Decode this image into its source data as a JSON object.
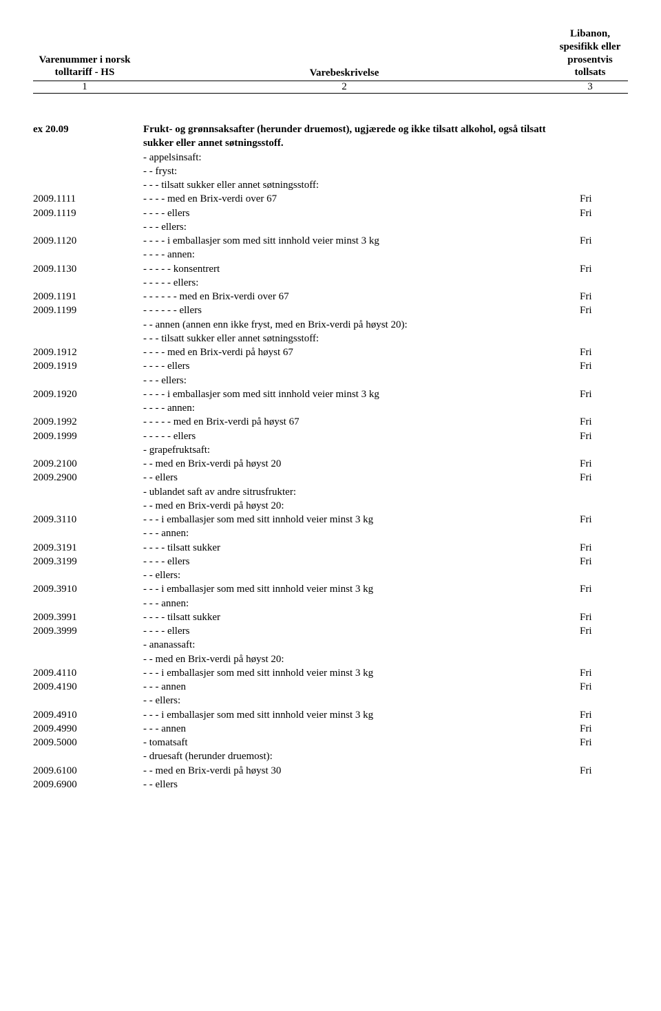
{
  "header": {
    "col1": "Varenummer\ni norsk\ntolltariff -\nHS",
    "col2": "Varebeskrivelse",
    "col3": "Libanon,\nspesifikk\neller\nprosentvis\ntollsats",
    "n1": "1",
    "n2": "2",
    "n3": "3"
  },
  "rows": [
    {
      "c1": "ex 20.09",
      "c2": "Frukt- og grønnsaksafter (herunder druemost), ugjærede og ikke tilsatt alkohol, også tilsatt sukker eller annet søtningsstoff.",
      "c3": "",
      "bold": true
    },
    {
      "c1": "",
      "c2": "- appelsinsaft:",
      "c3": ""
    },
    {
      "c1": "",
      "c2": "- - fryst:",
      "c3": ""
    },
    {
      "c1": "",
      "c2": "- - - tilsatt sukker eller annet søtningsstoff:",
      "c3": ""
    },
    {
      "c1": "2009.1111",
      "c2": "- - - - med en Brix-verdi over 67",
      "c3": "Fri"
    },
    {
      "c1": "2009.1119",
      "c2": "- - - - ellers",
      "c3": "Fri"
    },
    {
      "c1": "",
      "c2": "- - - ellers:",
      "c3": ""
    },
    {
      "c1": "2009.1120",
      "c2": "- - - - i emballasjer som med sitt innhold veier minst 3 kg",
      "c3": "Fri"
    },
    {
      "c1": "",
      "c2": "- - - - annen:",
      "c3": ""
    },
    {
      "c1": "2009.1130",
      "c2": "- - - - - konsentrert",
      "c3": "Fri"
    },
    {
      "c1": "",
      "c2": "- - - - - ellers:",
      "c3": ""
    },
    {
      "c1": "2009.1191",
      "c2": "- - - - - - med en Brix-verdi over 67",
      "c3": "Fri"
    },
    {
      "c1": "2009.1199",
      "c2": "- - - - - - ellers",
      "c3": "Fri"
    },
    {
      "c1": "",
      "c2": "- - annen (annen enn ikke fryst, med en Brix-verdi på høyst 20):",
      "c3": ""
    },
    {
      "c1": "",
      "c2": "- - - tilsatt sukker eller annet søtningsstoff:",
      "c3": ""
    },
    {
      "c1": "2009.1912",
      "c2": "- - - - med en Brix-verdi på høyst 67",
      "c3": "Fri"
    },
    {
      "c1": "2009.1919",
      "c2": "- - - - ellers",
      "c3": "Fri"
    },
    {
      "c1": "",
      "c2": "- - - ellers:",
      "c3": ""
    },
    {
      "c1": "2009.1920",
      "c2": "- - - - i emballasjer som med sitt innhold veier minst 3 kg",
      "c3": "Fri"
    },
    {
      "c1": "",
      "c2": "- - - - annen:",
      "c3": ""
    },
    {
      "c1": "2009.1992",
      "c2": "- - - - - med en Brix-verdi på høyst 67",
      "c3": "Fri"
    },
    {
      "c1": "2009.1999",
      "c2": "- - - - - ellers",
      "c3": "Fri"
    },
    {
      "c1": "",
      "c2": "- grapefruktsaft:",
      "c3": ""
    },
    {
      "c1": "2009.2100",
      "c2": "- - med en Brix-verdi på høyst 20",
      "c3": "Fri"
    },
    {
      "c1": "2009.2900",
      "c2": "- - ellers",
      "c3": "Fri"
    },
    {
      "c1": "",
      "c2": "- ublandet saft av andre sitrusfrukter:",
      "c3": ""
    },
    {
      "c1": "",
      "c2": "- - med en Brix-verdi på høyst 20:",
      "c3": ""
    },
    {
      "c1": "2009.3110",
      "c2": "- - - i emballasjer som med sitt innhold veier minst 3 kg",
      "c3": "Fri"
    },
    {
      "c1": "",
      "c2": "- - - annen:",
      "c3": ""
    },
    {
      "c1": "2009.3191",
      "c2": "- - - - tilsatt sukker",
      "c3": "Fri"
    },
    {
      "c1": "2009.3199",
      "c2": "- - - - ellers",
      "c3": "Fri"
    },
    {
      "c1": "",
      "c2": "- - ellers:",
      "c3": ""
    },
    {
      "c1": "2009.3910",
      "c2": "- - - i emballasjer som med sitt innhold veier minst 3 kg",
      "c3": "Fri"
    },
    {
      "c1": "",
      "c2": "- - - annen:",
      "c3": ""
    },
    {
      "c1": "2009.3991",
      "c2": "- - - - tilsatt sukker",
      "c3": "Fri"
    },
    {
      "c1": "2009.3999",
      "c2": "- - - - ellers",
      "c3": "Fri"
    },
    {
      "c1": "",
      "c2": "- ananassaft:",
      "c3": ""
    },
    {
      "c1": "",
      "c2": "- - med en Brix-verdi på høyst 20:",
      "c3": ""
    },
    {
      "c1": "2009.4110",
      "c2": "- - - i emballasjer som med sitt innhold veier minst 3 kg",
      "c3": "Fri"
    },
    {
      "c1": "2009.4190",
      "c2": "- - - annen",
      "c3": "Fri"
    },
    {
      "c1": "",
      "c2": "- - ellers:",
      "c3": ""
    },
    {
      "c1": "2009.4910",
      "c2": "- - - i emballasjer som med sitt innhold veier minst 3 kg",
      "c3": "Fri"
    },
    {
      "c1": "2009.4990",
      "c2": "- - - annen",
      "c3": "Fri"
    },
    {
      "c1": "2009.5000",
      "c2": "- tomatsaft",
      "c3": "Fri"
    },
    {
      "c1": "",
      "c2": "- druesaft (herunder druemost):",
      "c3": ""
    },
    {
      "c1": "2009.6100",
      "c2": "- - med en Brix-verdi på høyst 30",
      "c3": "Fri"
    },
    {
      "c1": "2009.6900",
      "c2": "- - ellers",
      "c3": ""
    }
  ]
}
